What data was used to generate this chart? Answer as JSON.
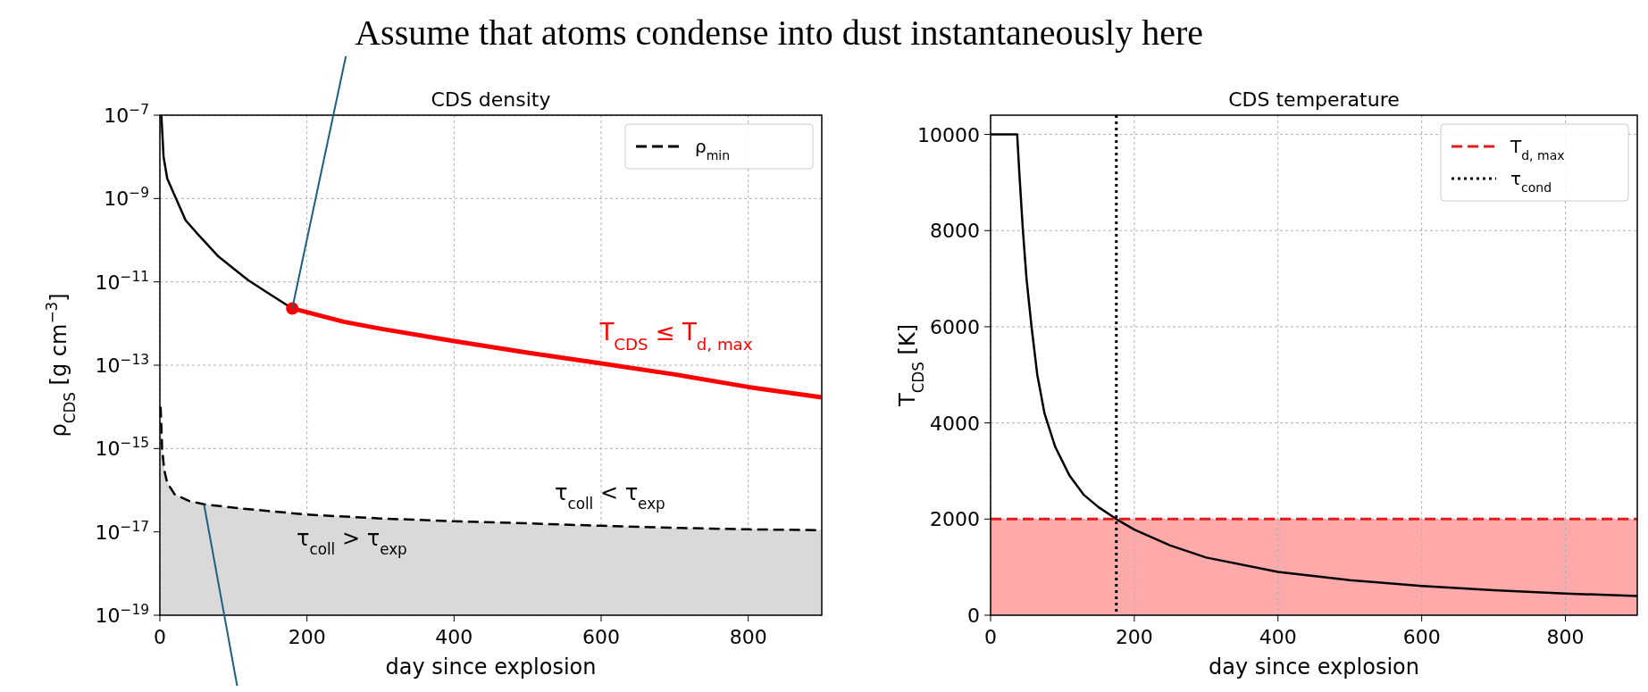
{
  "chart_data": [
    {
      "type": "line",
      "title": "CDS density",
      "xlabel": "day since explosion",
      "ylabel": "ρ$_{CDS}$ [g cm$^{−3}$]",
      "log": "y",
      "grid": true,
      "legend": "top right",
      "xlim": [
        0,
        900
      ],
      "xticks": [
        0,
        200,
        400,
        600,
        800
      ],
      "ylim": [
        1e-19,
        1e-07
      ],
      "yticks": [
        {
          "value": 1e-19,
          "label": "10$^{−19}$"
        },
        {
          "value": 1e-17,
          "label": "10$^{−17}$"
        },
        {
          "value": 1e-15,
          "label": "10$^{−15}$"
        },
        {
          "value": 1e-13,
          "label": "10$^{−13}$"
        },
        {
          "value": 1e-11,
          "label": "10$^{−11}$"
        },
        {
          "value": 1e-09,
          "label": "10$^{−9}$"
        },
        {
          "value": 1e-07,
          "label": "10$^{−7}$"
        }
      ],
      "series": [
        {
          "type": "area",
          "name": "ρ$_{min}$",
          "color": "#000000",
          "line_style": "dashed",
          "x": [
            1,
            3,
            6,
            10,
            20,
            40,
            60,
            100,
            200,
            300,
            400,
            500,
            600,
            700,
            800,
            900
          ],
          "values": [
            1e-14,
            1e-15,
            3e-16,
            1.5e-16,
            8e-17,
            5.5e-17,
            4.6e-17,
            3.8e-17,
            2.6e-17,
            2.1e-17,
            1.8e-17,
            1.6e-17,
            1.4e-17,
            1.25e-17,
            1.15e-17,
            1.1e-17
          ]
        },
        {
          "color": "#000000",
          "x": [
            2,
            5,
            10,
            20,
            35,
            50,
            80,
            120,
            150,
            180
          ],
          "values": [
            1e-07,
            1e-08,
            3e-09,
            1.2e-09,
            3e-10,
            1.5e-10,
            4e-11,
            1.1e-11,
            5e-12,
            2.3e-12
          ]
        },
        {
          "color": "#ff0000",
          "x": [
            180,
            250,
            300,
            400,
            500,
            600,
            700,
            800,
            900
          ],
          "values": [
            2.3e-12,
            1.1e-12,
            7.5e-13,
            3.8e-13,
            2e-13,
            1.1e-13,
            6e-14,
            3e-14,
            1.7e-14
          ]
        },
        {
          "type": "scatter",
          "color": "#ff0000",
          "marker": "circle",
          "x": [
            180
          ],
          "values": [
            2.3e-12
          ]
        }
      ],
      "annotations": [
        {
          "text": "Assume that atoms condense into dust instantaneously here",
          "x": 180,
          "y": 2.3e-12
        },
        "T$_{CDS}$ ≤ T$_{d, max}$",
        "τ$_{coll}$ < τ$_{exp}$",
        "τ$_{coll}$ > τ$_{exp}$"
      ]
    },
    {
      "type": "line",
      "title": "CDS temperature",
      "xlabel": "day since explosion",
      "ylabel": "T$_{CDS}$ [K]",
      "grid": true,
      "legend": "top right",
      "xlim": [
        0,
        900
      ],
      "xticks": [
        0,
        200,
        400,
        600,
        800
      ],
      "ylim": [
        0,
        10400
      ],
      "yticks": [
        0,
        2000,
        4000,
        6000,
        8000,
        10000
      ],
      "series": [
        {
          "color": "#000000",
          "x": [
            0,
            37,
            40,
            45,
            50,
            57,
            65,
            75,
            90,
            110,
            130,
            150,
            175,
            200,
            250,
            300,
            400,
            500,
            600,
            700,
            800,
            900
          ],
          "values": [
            10000,
            10000,
            9200,
            8000,
            7000,
            6000,
            5000,
            4200,
            3500,
            2900,
            2500,
            2250,
            2000,
            1780,
            1450,
            1200,
            900,
            730,
            610,
            520,
            450,
            400
          ]
        }
      ],
      "ref_lines": [
        {
          "axis": "y",
          "value": 2000,
          "label": "T$_{d, max}$",
          "color": "#e41a1c",
          "line_style": "dashed"
        },
        {
          "axis": "x",
          "value": 175,
          "label": "τ$_{cond}$",
          "color": "#000000",
          "line_style": "dotted"
        }
      ],
      "bands": [
        {
          "axis": "y",
          "from": 0,
          "to": 2000,
          "color": "#ffaaaa"
        }
      ]
    }
  ]
}
